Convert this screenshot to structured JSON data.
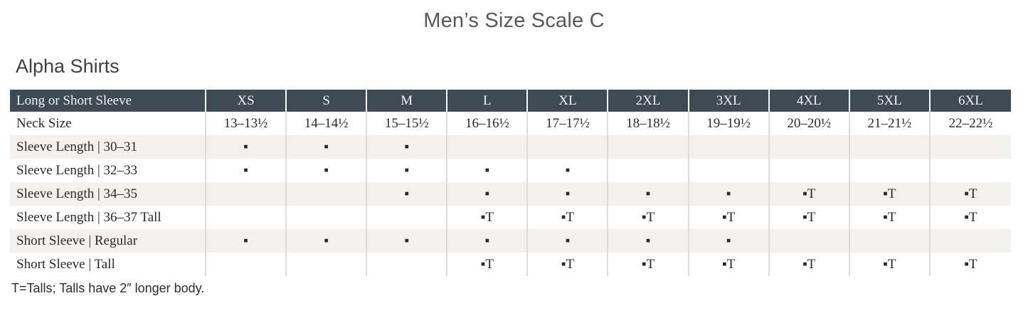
{
  "title": "Men’s Size Scale C",
  "section": {
    "heading": "Alpha Shirts"
  },
  "size_chart": {
    "columns": [
      "Long or Short Sleeve",
      "XS",
      "S",
      "M",
      "L",
      "XL",
      "2XL",
      "3XL",
      "4XL",
      "5XL",
      "6XL"
    ],
    "rows": [
      {
        "label": "Neck Size",
        "cells": [
          "13–13½",
          "14–14½",
          "15–15½",
          "16–16½",
          "17–17½",
          "18–18½",
          "19–19½",
          "20–20½",
          "21–21½",
          "22–22½"
        ]
      },
      {
        "label": "Sleeve Length | 30–31",
        "cells": [
          "▪",
          "▪",
          "▪",
          "",
          "",
          "",
          "",
          "",
          "",
          ""
        ]
      },
      {
        "label": "Sleeve Length | 32–33",
        "cells": [
          "▪",
          "▪",
          "▪",
          "▪",
          "▪",
          "",
          "",
          "",
          "",
          ""
        ]
      },
      {
        "label": "Sleeve Length | 34–35",
        "cells": [
          "",
          "",
          "▪",
          "▪",
          "▪",
          "▪",
          "▪",
          "▪T",
          "▪T",
          "▪T"
        ]
      },
      {
        "label": "Sleeve Length | 36–37 Tall",
        "cells": [
          "",
          "",
          "",
          "▪T",
          "▪T",
          "▪T",
          "▪T",
          "▪T",
          "▪T",
          "▪T"
        ]
      },
      {
        "label": "Short Sleeve | Regular",
        "cells": [
          "▪",
          "▪",
          "▪",
          "▪",
          "▪",
          "▪",
          "▪",
          "",
          "",
          ""
        ]
      },
      {
        "label": "Short Sleeve | Tall",
        "cells": [
          "",
          "",
          "",
          "▪T",
          "▪T",
          "▪T",
          "▪T",
          "▪T",
          "▪T",
          "▪T"
        ]
      }
    ]
  },
  "footnote": "T=Talls; Talls have 2″ longer body.",
  "colors": {
    "header_bg": "#3e4a54",
    "header_text": "#f2f3f3",
    "alt_row_bg": "#f2f1ef",
    "grid_line": "#dedcd9",
    "body_text": "#2b2a28",
    "title_text": "#58595b"
  }
}
